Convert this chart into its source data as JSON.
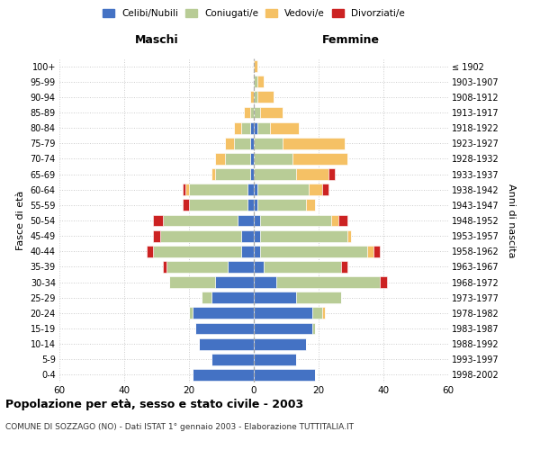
{
  "age_groups": [
    "0-4",
    "5-9",
    "10-14",
    "15-19",
    "20-24",
    "25-29",
    "30-34",
    "35-39",
    "40-44",
    "45-49",
    "50-54",
    "55-59",
    "60-64",
    "65-69",
    "70-74",
    "75-79",
    "80-84",
    "85-89",
    "90-94",
    "95-99",
    "100+"
  ],
  "birth_years": [
    "1998-2002",
    "1993-1997",
    "1988-1992",
    "1983-1987",
    "1978-1982",
    "1973-1977",
    "1968-1972",
    "1963-1967",
    "1958-1962",
    "1953-1957",
    "1948-1952",
    "1943-1947",
    "1938-1942",
    "1933-1937",
    "1928-1932",
    "1923-1927",
    "1918-1922",
    "1913-1917",
    "1908-1912",
    "1903-1907",
    "≤ 1902"
  ],
  "colors": {
    "celibe": "#4472c4",
    "coniugato": "#b8cc96",
    "vedovo": "#f5c165",
    "divorziato": "#cc2222"
  },
  "maschi": {
    "celibe": [
      19,
      13,
      17,
      18,
      19,
      13,
      12,
      8,
      4,
      4,
      5,
      2,
      2,
      1,
      1,
      1,
      1,
      0,
      0,
      0,
      0
    ],
    "coniugato": [
      0,
      0,
      0,
      0,
      1,
      3,
      14,
      19,
      27,
      25,
      23,
      18,
      18,
      11,
      8,
      5,
      3,
      1,
      0,
      0,
      0
    ],
    "vedovo": [
      0,
      0,
      0,
      0,
      0,
      0,
      0,
      0,
      0,
      0,
      0,
      0,
      1,
      1,
      3,
      3,
      2,
      2,
      1,
      0,
      0
    ],
    "divorziato": [
      0,
      0,
      0,
      0,
      0,
      0,
      0,
      1,
      2,
      2,
      3,
      2,
      1,
      0,
      0,
      0,
      0,
      0,
      0,
      0,
      0
    ]
  },
  "femmine": {
    "nubile": [
      19,
      13,
      16,
      18,
      18,
      13,
      7,
      3,
      2,
      2,
      2,
      1,
      1,
      0,
      0,
      0,
      1,
      0,
      0,
      0,
      0
    ],
    "coniugata": [
      0,
      0,
      0,
      1,
      3,
      14,
      32,
      24,
      33,
      27,
      22,
      15,
      16,
      13,
      12,
      9,
      4,
      2,
      1,
      1,
      0
    ],
    "vedova": [
      0,
      0,
      0,
      0,
      1,
      0,
      0,
      0,
      2,
      1,
      2,
      3,
      4,
      10,
      17,
      19,
      9,
      7,
      5,
      2,
      1
    ],
    "divorziata": [
      0,
      0,
      0,
      0,
      0,
      0,
      2,
      2,
      2,
      0,
      3,
      0,
      2,
      2,
      0,
      0,
      0,
      0,
      0,
      0,
      0
    ]
  },
  "xlim": 60,
  "xticks": [
    -60,
    -40,
    -20,
    0,
    20,
    40,
    60
  ],
  "xticklabels": [
    "60",
    "40",
    "20",
    "0",
    "20",
    "40",
    "60"
  ],
  "title": "Popolazione per età, sesso e stato civile - 2003",
  "subtitle": "COMUNE DI SOZZAGO (NO) - Dati ISTAT 1° gennaio 2003 - Elaborazione TUTTITALIA.IT",
  "ylabel_left": "Fasce di età",
  "ylabel_right": "Anni di nascita",
  "maschi_label": "Maschi",
  "femmine_label": "Femmine"
}
